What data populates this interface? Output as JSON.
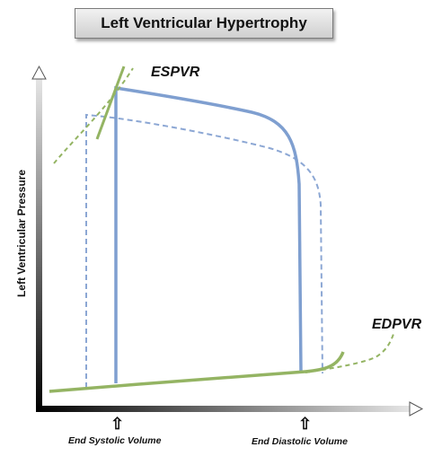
{
  "title": "Left Ventricular Hypertrophy",
  "ylabel": "Left Ventricular Pressure",
  "curves": {
    "espvr": "ESPVR",
    "edpvr": "EDPVR"
  },
  "xticks": {
    "end_systolic": "End Systolic Volume",
    "end_diastolic": "End Diastolic Volume"
  },
  "colors": {
    "loop_solid": "#7f9fd0",
    "loop_dashed": "#7f9fd0",
    "relation_lines": "#94b463",
    "axis_gradient_dark": "#000000",
    "axis_gradient_light": "#e0e0e0"
  },
  "icons": {
    "marker": "up-arrow-icon"
  }
}
